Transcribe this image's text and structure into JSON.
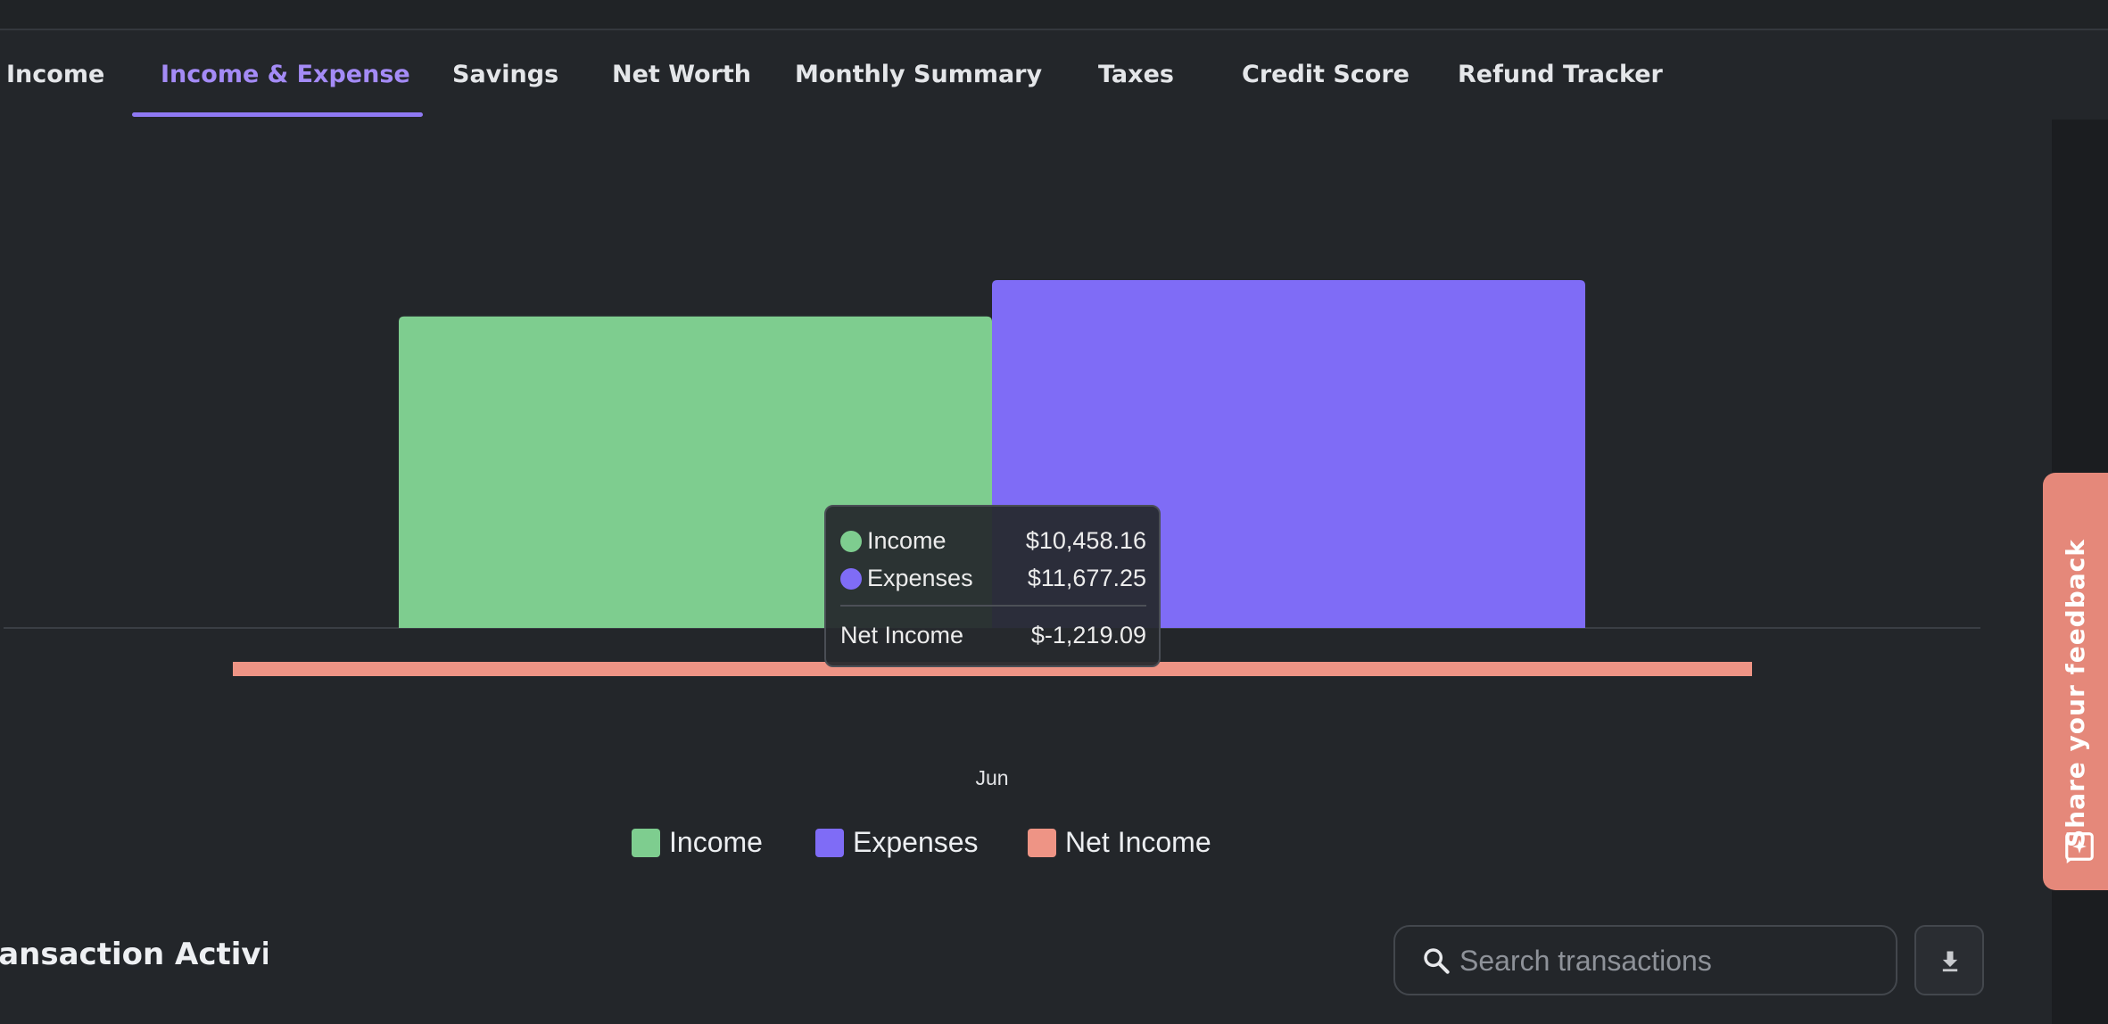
{
  "tabs": [
    {
      "label": "Income"
    },
    {
      "label": "Income & Expense",
      "active": true
    },
    {
      "label": "Savings"
    },
    {
      "label": "Net Worth"
    },
    {
      "label": "Monthly Summary"
    },
    {
      "label": "Taxes"
    },
    {
      "label": "Credit Score"
    },
    {
      "label": "Refund Tracker"
    }
  ],
  "feedback": {
    "label": "Share your feedback",
    "icon": "feedback-icon",
    "color": "#e5887a"
  },
  "tooltip": {
    "rows": [
      {
        "label": "Income",
        "value": "$10,458.16",
        "color": "#7ecd8f"
      },
      {
        "label": "Expenses",
        "value": "$11,677.25",
        "color": "#7f6cf6"
      }
    ],
    "net_label": "Net Income",
    "net_value": "$-1,219.09"
  },
  "chart_data": {
    "type": "bar",
    "categories": [
      "Jun"
    ],
    "series": [
      {
        "name": "Income",
        "values": [
          10458.16
        ],
        "color": "#7ecd8f"
      },
      {
        "name": "Expenses",
        "values": [
          11677.25
        ],
        "color": "#7f6cf6"
      },
      {
        "name": "Net Income",
        "values": [
          -1219.09
        ],
        "color": "#ee9485",
        "style": "line"
      }
    ],
    "legend": "bottom-center"
  },
  "legend": [
    {
      "label": "Income",
      "color": "#7ecd8f"
    },
    {
      "label": "Expenses",
      "color": "#7f6cf6"
    },
    {
      "label": "Net Income",
      "color": "#ee9485"
    }
  ],
  "section": {
    "title": "Transaction Activity"
  },
  "search": {
    "placeholder": "Search transactions",
    "icon": "search-icon"
  },
  "download": {
    "icon": "download-icon"
  }
}
